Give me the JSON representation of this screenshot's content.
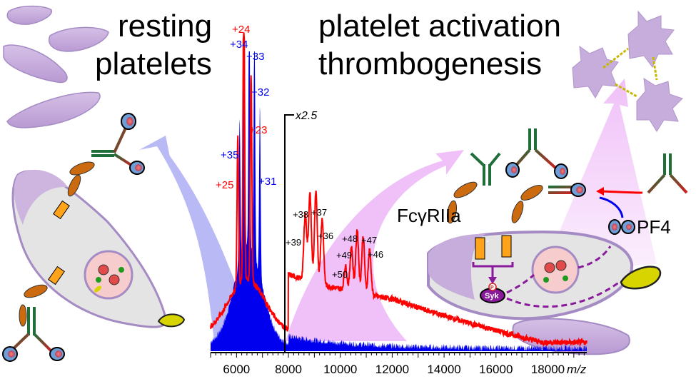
{
  "titles": {
    "left_line1": "resting",
    "left_line2": "platelets",
    "right_line1": "platelet activation",
    "right_line2": "thrombogenesis"
  },
  "labels": {
    "receptor": "FcγRIIa",
    "pf4": "PF4",
    "syk": "Syk",
    "phospho": "P",
    "scale_factor": "x2.5"
  },
  "colors": {
    "red_series": "#ff0000",
    "blue_series": "#0000ee",
    "platelet": "#c7addb",
    "platelet_edge": "#a58bc4",
    "resting_arrow": "#b9b9f5",
    "activation_arrow": "#f0c0f8",
    "antibody": "#1f6e3a",
    "receptor": "#cc6a10",
    "signal": "#8a1a9c"
  },
  "chart_data": {
    "type": "line",
    "title": "",
    "xlabel": "m/z",
    "ylabel": "",
    "xlim": [
      5000,
      19500
    ],
    "x_ticks": [
      6000,
      8000,
      10000,
      12000,
      14000,
      16000,
      18000
    ],
    "tick_labels": [
      "6000",
      "8000",
      "10000",
      "12000",
      "14000",
      "16000",
      "18000"
    ],
    "inset_scale": "x2.5",
    "inset_start_mz": 8000,
    "series": [
      {
        "name": "blue",
        "color": "#0000ee",
        "peaks": [
          {
            "label": "+35",
            "mz": 6120,
            "rel": 0.49
          },
          {
            "label": "+34",
            "mz": 6300,
            "rel": 1.0
          },
          {
            "label": "+33",
            "mz": 6490,
            "rel": 0.95
          },
          {
            "label": "+32",
            "mz": 6690,
            "rel": 0.82
          },
          {
            "label": "+31",
            "mz": 6900,
            "rel": 0.57
          }
        ]
      },
      {
        "name": "red",
        "color": "#ff0000",
        "peaks": [
          {
            "label": "+25",
            "mz": 6050,
            "rel": 0.5
          },
          {
            "label": "+24",
            "mz": 6280,
            "rel": 1.0
          },
          {
            "label": "+23",
            "mz": 6560,
            "rel": 0.69
          },
          {
            "label": "+39",
            "mz": 8650,
            "rel": 0.34
          },
          {
            "label": "+38",
            "mz": 8830,
            "rel": 0.41
          },
          {
            "label": "+37",
            "mz": 9060,
            "rel": 0.42
          },
          {
            "label": "+36",
            "mz": 9300,
            "rel": 0.34
          },
          {
            "label": "+50",
            "mz": 10200,
            "rel": 0.2
          },
          {
            "label": "+49",
            "mz": 10430,
            "rel": 0.27
          },
          {
            "label": "+48",
            "mz": 10650,
            "rel": 0.33
          },
          {
            "label": "+47",
            "mz": 10880,
            "rel": 0.31
          },
          {
            "label": "+46",
            "mz": 11130,
            "rel": 0.27
          }
        ]
      }
    ]
  }
}
